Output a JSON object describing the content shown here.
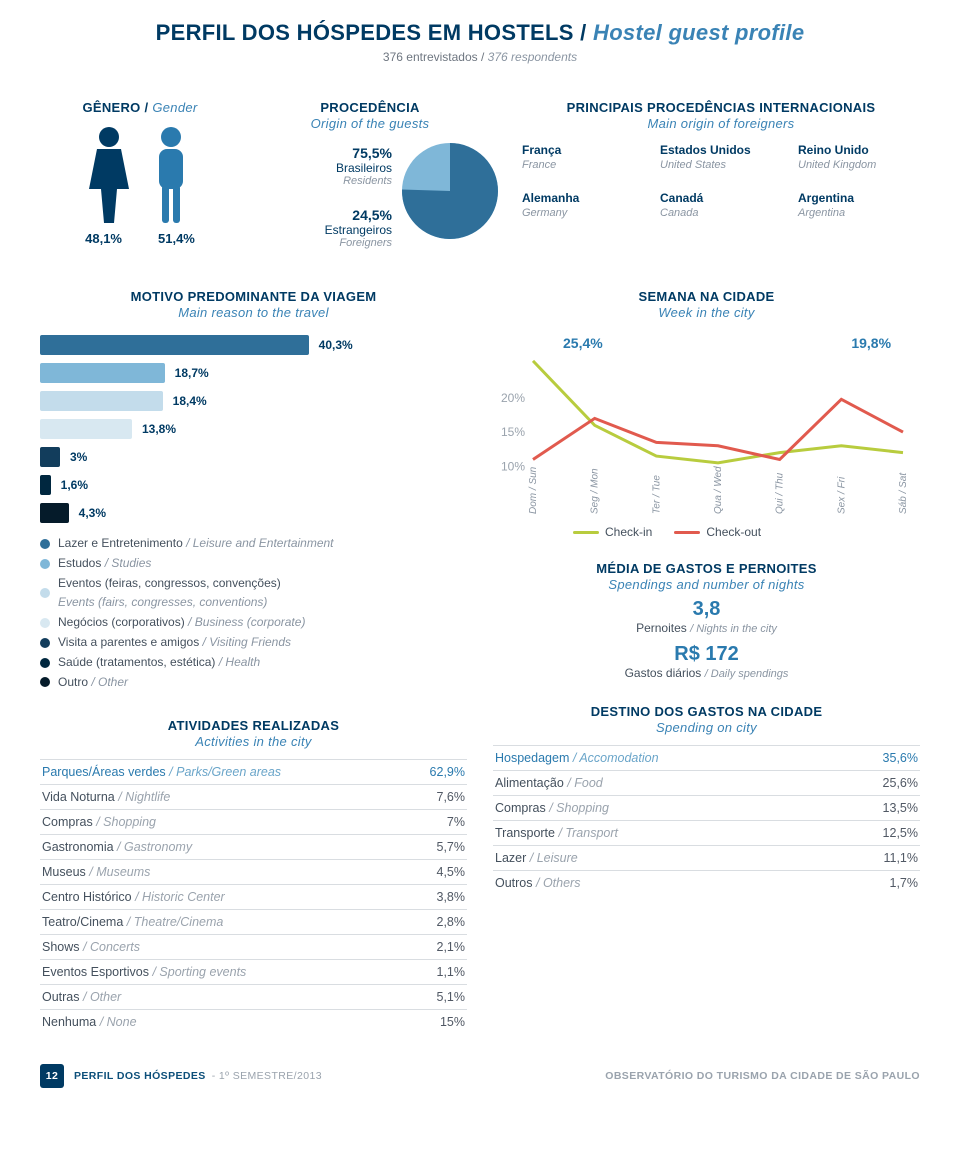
{
  "colors": {
    "primary": "#003a63",
    "accent": "#2a7aae",
    "muted": "#8a95a2",
    "green": "#b8cc3e",
    "red": "#e15a4e",
    "pie_a": "#2f6f99",
    "pie_b": "#7fb7d8",
    "bar_palette": [
      "#2f6f99",
      "#7fb7d8",
      "#c3dceb",
      "#d8e8f1",
      "#123d5c",
      "#00273f",
      "#051b2a"
    ]
  },
  "title": {
    "pt": "PERFIL DOS HÓSPEDES EM HOSTELS",
    "sep": " / ",
    "en": "Hostel guest profile"
  },
  "subtitle": {
    "pt": "376 entrevistados",
    "sep": " / ",
    "en": "376 respondents"
  },
  "gender": {
    "title_pt": "GÊNERO",
    "title_en": "Gender",
    "female_pct": "48,1%",
    "male_pct": "51,4%"
  },
  "origin": {
    "title_pt": "PROCEDÊNCIA",
    "title_en": "Origin of the guests",
    "residents": {
      "pct": "75,5%",
      "pt": "Brasileiros",
      "en": "Residents"
    },
    "foreigners": {
      "pct": "24,5%",
      "pt": "Estrangeiros",
      "en": "Foreigners"
    },
    "pie_split": 75.5
  },
  "intl": {
    "title_pt": "PRINCIPAIS PROCEDÊNCIAS INTERNACIONAIS",
    "title_en": "Main origin of foreigners",
    "items": [
      {
        "pt": "França",
        "en": "France"
      },
      {
        "pt": "Estados Unidos",
        "en": "United States"
      },
      {
        "pt": "Reino Unido",
        "en": "United Kingdom"
      },
      {
        "pt": "Alemanha",
        "en": "Germany"
      },
      {
        "pt": "Canadá",
        "en": "Canada"
      },
      {
        "pt": "Argentina",
        "en": "Argentina"
      }
    ]
  },
  "reason": {
    "title_pt": "MOTIVO PREDOMINANTE DA VIAGEM",
    "title_en": "Main reason to the travel",
    "max_pct": 42,
    "bars": [
      {
        "label": "40,3%",
        "value": 40.3
      },
      {
        "label": "18,7%",
        "value": 18.7
      },
      {
        "label": "18,4%",
        "value": 18.4
      },
      {
        "label": "13,8%",
        "value": 13.8
      },
      {
        "label": "3%",
        "value": 3
      },
      {
        "label": "1,6%",
        "value": 1.6
      },
      {
        "label": "4,3%",
        "value": 4.3
      }
    ],
    "legend": [
      {
        "pt": "Lazer e Entretenimento",
        "en": " / Leisure and Entertainment"
      },
      {
        "pt": "Estudos",
        "en": " / Studies"
      },
      {
        "pt": "Eventos (feiras, congressos, convenções)",
        "en": "Events (fairs, congresses, conventions)"
      },
      {
        "pt": "Negócios (corporativos)",
        "en": " / Business (corporate)"
      },
      {
        "pt": "Visita a parentes e amigos",
        "en": " / Visiting Friends"
      },
      {
        "pt": "Saúde (tratamentos, estética)",
        "en": " / Health"
      },
      {
        "pt": "Outro",
        "en": " / Other"
      }
    ]
  },
  "week": {
    "title_pt": "SEMANA NA CIDADE",
    "title_en": "Week in the city",
    "callout_in": "25,4%",
    "callout_out": "19,8%",
    "yticks": [
      "20%",
      "15%",
      "10%"
    ],
    "ylim": [
      8,
      27
    ],
    "days": [
      "Dom / Sun",
      "Seg / Mon",
      "Ter / Tue",
      "Qua / Wed",
      "Qui / Thu",
      "Sex / Fri",
      "Sáb / Sat"
    ],
    "checkin": [
      25.4,
      16,
      11.5,
      10.5,
      12,
      13,
      12
    ],
    "checkout": [
      11,
      17,
      13.5,
      13,
      11,
      19.8,
      15
    ],
    "key": [
      {
        "label": "Check-in",
        "color": "#b8cc3e"
      },
      {
        "label": "Check-out",
        "color": "#e15a4e"
      }
    ]
  },
  "activities": {
    "title_pt": "ATIVIDADES REALIZADAS",
    "title_en": "Activities in the city",
    "highlight_idx": 0,
    "rows": [
      {
        "pt": "Parques/Áreas verdes",
        "en": "Parks/Green areas",
        "val": "62,9%"
      },
      {
        "pt": "Vida Noturna",
        "en": "Nightlife",
        "val": "7,6%"
      },
      {
        "pt": "Compras",
        "en": "Shopping",
        "val": "7%"
      },
      {
        "pt": "Gastronomia",
        "en": "Gastronomy",
        "val": "5,7%"
      },
      {
        "pt": "Museus",
        "en": "Museums",
        "val": "4,5%"
      },
      {
        "pt": "Centro Histórico",
        "en": "Historic Center",
        "val": "3,8%"
      },
      {
        "pt": "Teatro/Cinema",
        "en": "Theatre/Cinema",
        "val": "2,8%"
      },
      {
        "pt": "Shows",
        "en": "Concerts",
        "val": "2,1%"
      },
      {
        "pt": "Eventos Esportivos",
        "en": "Sporting events",
        "val": "1,1%"
      },
      {
        "pt": "Outras",
        "en": "Other",
        "val": "5,1%"
      },
      {
        "pt": "Nenhuma",
        "en": "None",
        "val": "15%"
      }
    ]
  },
  "spend": {
    "title_pt": "MÉDIA DE GASTOS E PERNOITES",
    "title_en": "Spendings and number of nights",
    "nights_val": "3,8",
    "nights_pt": "Pernoites",
    "nights_en": "Nights in the city",
    "daily_val": "R$ 172",
    "daily_pt": "Gastos diários",
    "daily_en": "Daily spendings"
  },
  "dest": {
    "title_pt": "DESTINO DOS GASTOS NA CIDADE",
    "title_en": "Spending on city",
    "highlight_idx": 0,
    "rows": [
      {
        "pt": "Hospedagem",
        "en": "Accomodation",
        "val": "35,6%"
      },
      {
        "pt": "Alimentação",
        "en": "Food",
        "val": "25,6%"
      },
      {
        "pt": "Compras",
        "en": "Shopping",
        "val": "13,5%"
      },
      {
        "pt": "Transporte",
        "en": "Transport",
        "val": "12,5%"
      },
      {
        "pt": "Lazer",
        "en": "Leisure",
        "val": "11,1%"
      },
      {
        "pt": "Outros",
        "en": "Others",
        "val": "1,7%"
      }
    ]
  },
  "footer": {
    "page": "12",
    "left_pt": "PERFIL DOS HÓSPEDES",
    "left_sp": " - 1º SEMESTRE/2013",
    "right": "OBSERVATÓRIO DO TURISMO DA CIDADE DE SÃO PAULO"
  }
}
